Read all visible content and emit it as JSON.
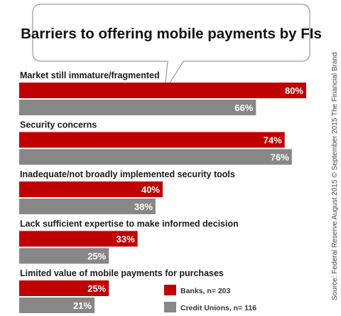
{
  "chart_data": {
    "type": "bar",
    "orientation": "horizontal",
    "title": "Barriers to offering mobile payments by FIs",
    "categories": [
      "Market still immature/fragmented",
      "Security concerns",
      "Inadequate/not broadly implemented security tools",
      "Lack sufficient expertise to make informed decision",
      "Limited value of mobile payments for purchases"
    ],
    "series": [
      {
        "name": "Banks, n= 203",
        "color": "#c00000",
        "values": [
          80,
          74,
          40,
          33,
          25
        ]
      },
      {
        "name": "Credit Unions, n= 116",
        "color": "#878787",
        "values": [
          66,
          76,
          38,
          25,
          21
        ]
      }
    ],
    "value_suffix": "%",
    "xlim": [
      0,
      100
    ],
    "grid": false,
    "legend_position": "bottom-right",
    "source": "Source: Federal Reserve August 2015 © September  2015 The Financial Brand"
  }
}
